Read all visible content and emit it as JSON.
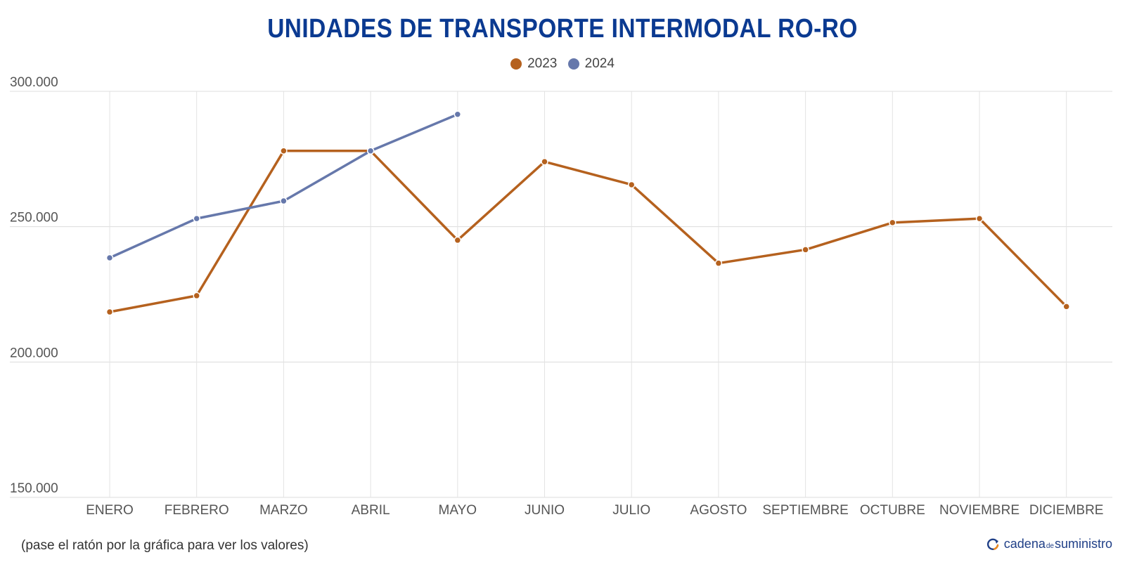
{
  "chart_data": {
    "type": "line",
    "title": "UNIDADES DE TRANSPORTE INTERMODAL RO-RO",
    "categories": [
      "ENERO",
      "FEBRERO",
      "MARZO",
      "ABRIL",
      "MAYO",
      "JUNIO",
      "JULIO",
      "AGOSTO",
      "SEPTIEMBRE",
      "OCTUBRE",
      "NOVIEMBRE",
      "DICIEMBRE"
    ],
    "series": [
      {
        "name": "2023",
        "color": "#b5611e",
        "values": [
          218500,
          224500,
          278000,
          278000,
          245000,
          274000,
          265500,
          236500,
          241500,
          251500,
          253000,
          220500
        ]
      },
      {
        "name": "2024",
        "color": "#6678ab",
        "values": [
          238500,
          253000,
          259500,
          278000,
          291500,
          null,
          null,
          null,
          null,
          null,
          null,
          null
        ]
      }
    ],
    "yticks": [
      150000,
      200000,
      250000,
      300000
    ],
    "ytick_labels": [
      "150.000",
      "200.000",
      "250.000",
      "300.000"
    ],
    "ylim": [
      150000,
      300000
    ],
    "xlabel": "",
    "ylabel": "",
    "legend": "top-center",
    "grid": true
  },
  "footnote": "(pase el ratón por la gráfica para ver los valores)",
  "brand": {
    "part1": "cadena",
    "part2": "de",
    "part3": "suministro"
  }
}
